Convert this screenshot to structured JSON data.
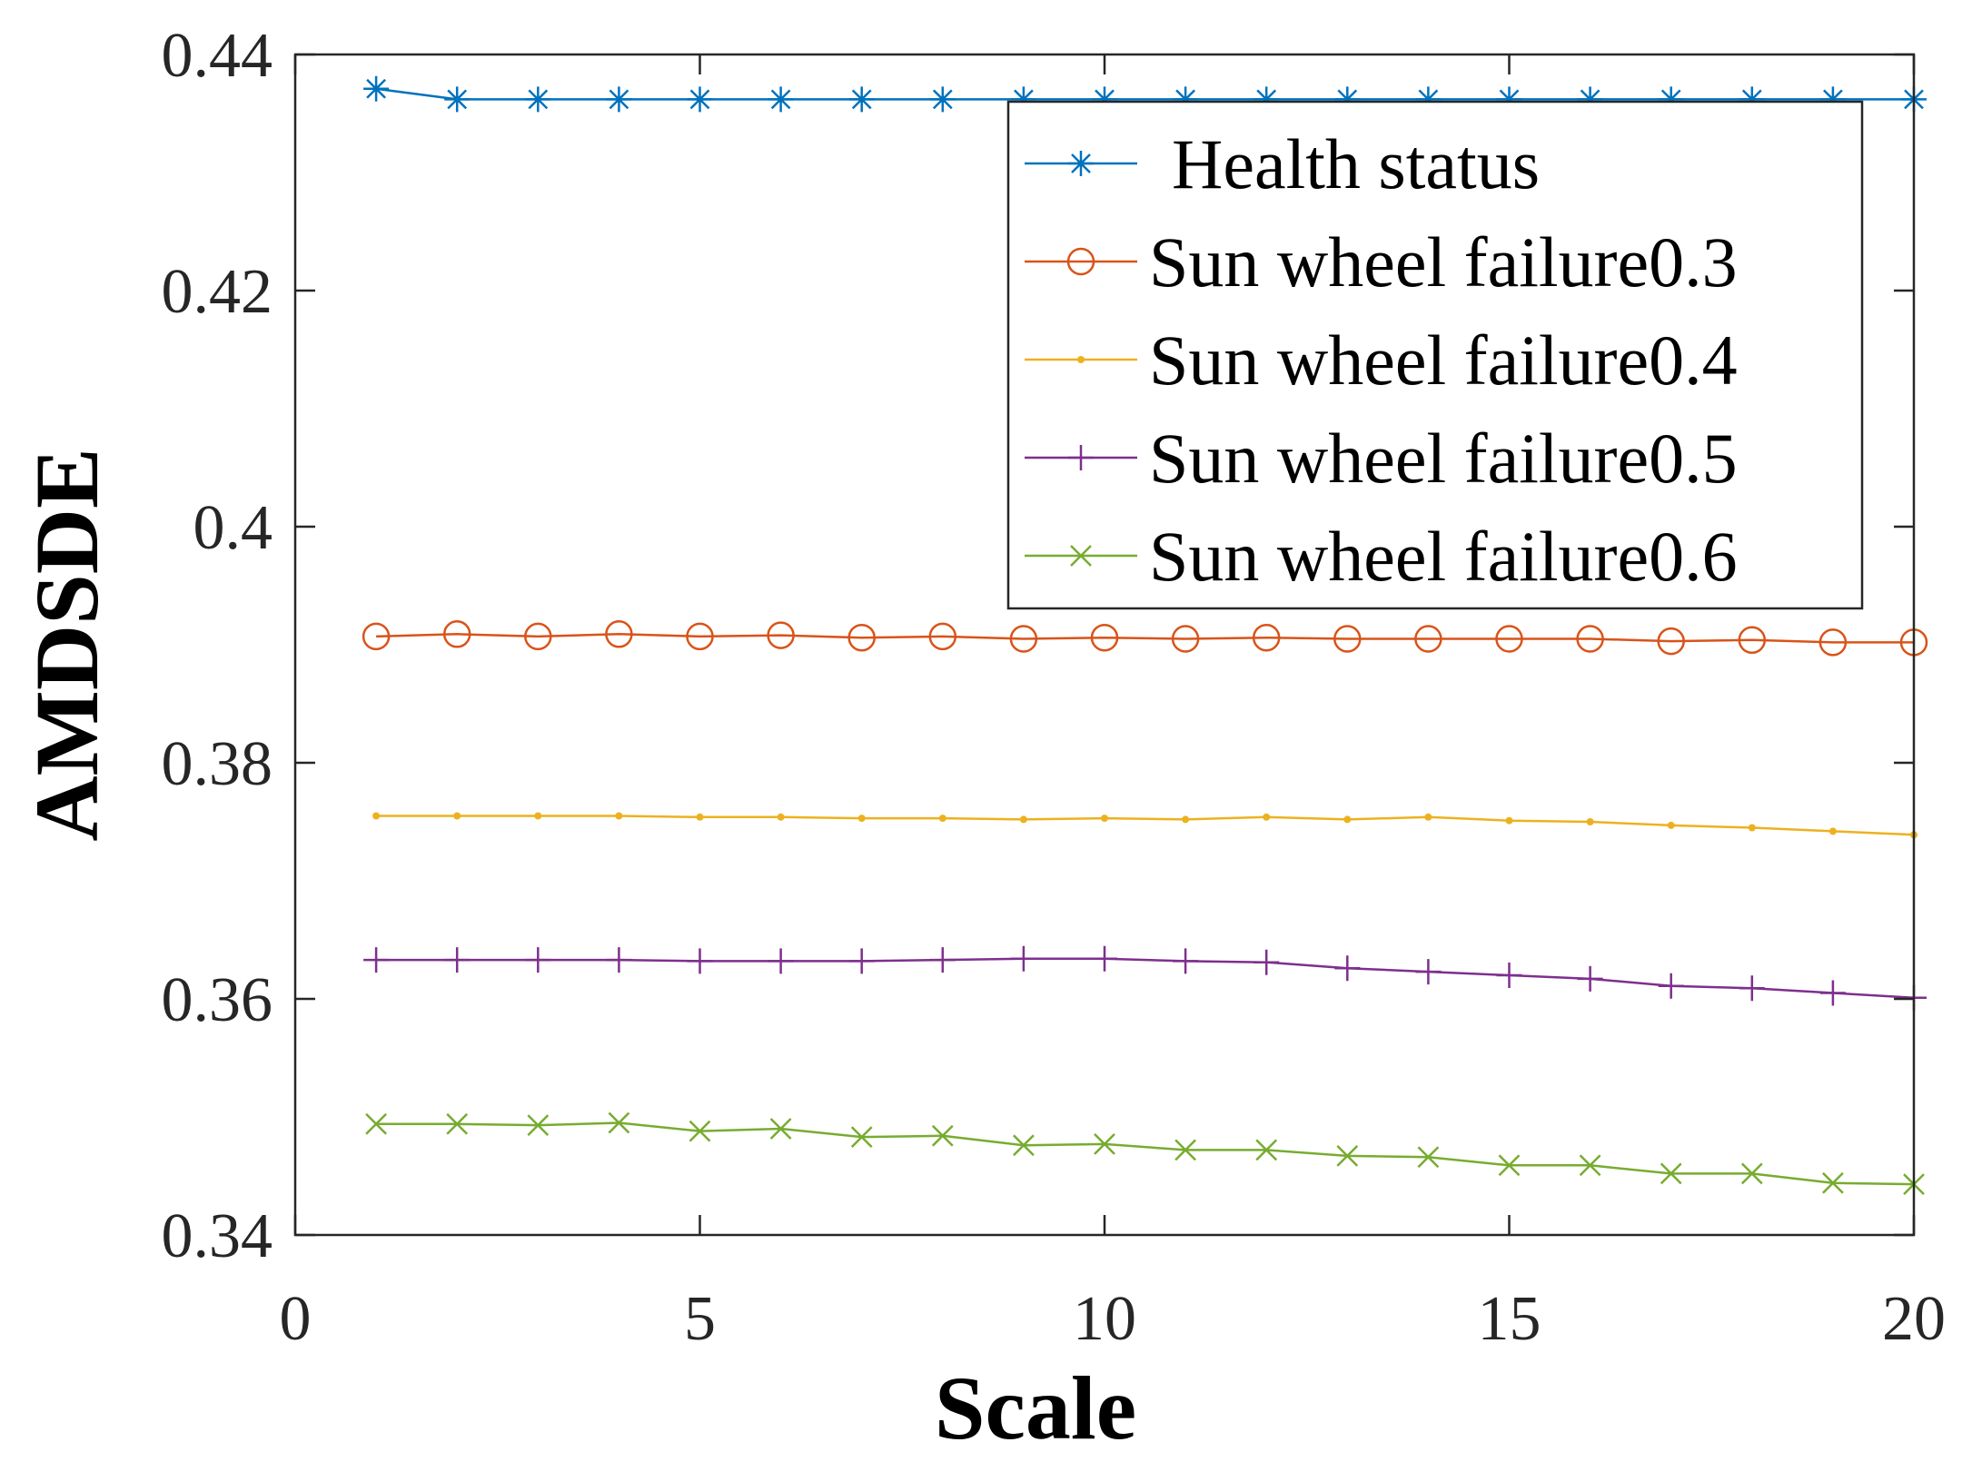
{
  "chart_data": {
    "type": "line",
    "xlabel": "Scale",
    "ylabel": "AMDSDE",
    "xlim": [
      0,
      20
    ],
    "ylim": [
      0.34,
      0.44
    ],
    "xticks": [
      0,
      5,
      10,
      15,
      20
    ],
    "yticks": [
      0.34,
      0.36,
      0.38,
      0.4,
      0.42,
      0.44
    ],
    "xtick_labels": [
      "0",
      "5",
      "10",
      "15",
      "20"
    ],
    "ytick_labels": [
      "0.34",
      "0.36",
      "0.38",
      "0.4",
      "0.42",
      "0.44"
    ],
    "grid": false,
    "legend_position": "top-right",
    "x": [
      1,
      2,
      3,
      4,
      5,
      6,
      7,
      8,
      9,
      10,
      11,
      12,
      13,
      14,
      15,
      16,
      17,
      18,
      19,
      20
    ],
    "series": [
      {
        "name": "Health status",
        "color": "#0072BD",
        "marker": "asterisk",
        "values": [
          0.4371,
          0.4362,
          0.4362,
          0.4362,
          0.4362,
          0.4362,
          0.4362,
          0.4362,
          0.4362,
          0.4362,
          0.4362,
          0.4362,
          0.4362,
          0.4362,
          0.4362,
          0.4362,
          0.4362,
          0.4362,
          0.4362,
          0.4362
        ]
      },
      {
        "name": "Sun wheel failure0.3",
        "color": "#D95319",
        "marker": "circle",
        "values": [
          0.3907,
          0.3909,
          0.3907,
          0.3909,
          0.3907,
          0.3908,
          0.3906,
          0.3907,
          0.3905,
          0.3906,
          0.3905,
          0.3906,
          0.3905,
          0.3905,
          0.3905,
          0.3905,
          0.3903,
          0.3904,
          0.3902,
          0.3902
        ]
      },
      {
        "name": "Sun wheel failure0.4",
        "color": "#EDB120",
        "marker": "point",
        "values": [
          0.3755,
          0.3755,
          0.3755,
          0.3755,
          0.3754,
          0.3754,
          0.3753,
          0.3753,
          0.3752,
          0.3753,
          0.3752,
          0.3754,
          0.3752,
          0.3754,
          0.3751,
          0.375,
          0.3747,
          0.3745,
          0.3742,
          0.3739
        ]
      },
      {
        "name": "Sun wheel failure0.5",
        "color": "#7E2F8E",
        "marker": "plus",
        "values": [
          0.3633,
          0.3633,
          0.3633,
          0.3633,
          0.3632,
          0.3632,
          0.3632,
          0.3633,
          0.3634,
          0.3634,
          0.3632,
          0.3631,
          0.3626,
          0.3623,
          0.362,
          0.3617,
          0.3611,
          0.3609,
          0.3605,
          0.3601
        ]
      },
      {
        "name": "Sun wheel failure0.6",
        "color": "#77AC30",
        "marker": "cross",
        "values": [
          0.3494,
          0.3494,
          0.3493,
          0.3495,
          0.3488,
          0.349,
          0.3483,
          0.3484,
          0.3476,
          0.3477,
          0.3472,
          0.3472,
          0.3467,
          0.3466,
          0.3459,
          0.3459,
          0.3452,
          0.3452,
          0.3444,
          0.3443
        ]
      }
    ]
  }
}
